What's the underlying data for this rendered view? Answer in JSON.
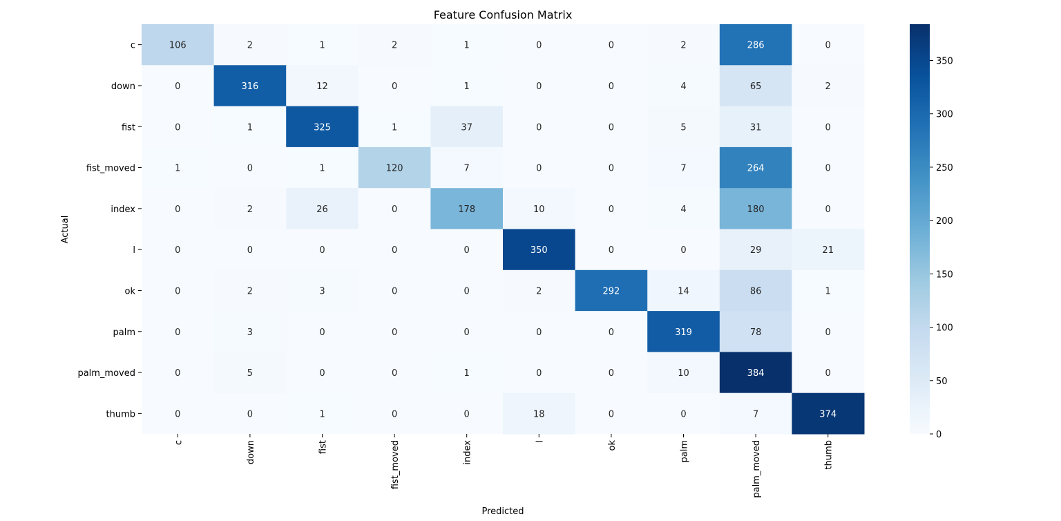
{
  "chart_data": {
    "type": "heatmap",
    "title": "Feature Confusion Matrix",
    "xlabel": "Predicted",
    "ylabel": "Actual",
    "row_labels": [
      "c",
      "down",
      "fist",
      "fist_moved",
      "index",
      "l",
      "ok",
      "palm",
      "palm_moved",
      "thumb"
    ],
    "col_labels": [
      "c",
      "down",
      "fist",
      "fist_moved",
      "index",
      "l",
      "ok",
      "palm",
      "palm_moved",
      "thumb"
    ],
    "values": [
      [
        106,
        2,
        1,
        2,
        1,
        0,
        0,
        2,
        286,
        0
      ],
      [
        0,
        316,
        12,
        0,
        1,
        0,
        0,
        4,
        65,
        2
      ],
      [
        0,
        1,
        325,
        1,
        37,
        0,
        0,
        5,
        31,
        0
      ],
      [
        1,
        0,
        1,
        120,
        7,
        0,
        0,
        7,
        264,
        0
      ],
      [
        0,
        2,
        26,
        0,
        178,
        10,
        0,
        4,
        180,
        0
      ],
      [
        0,
        0,
        0,
        0,
        0,
        350,
        0,
        0,
        29,
        21
      ],
      [
        0,
        2,
        3,
        0,
        0,
        2,
        292,
        14,
        86,
        1
      ],
      [
        0,
        3,
        0,
        0,
        0,
        0,
        0,
        319,
        78,
        0
      ],
      [
        0,
        5,
        0,
        0,
        1,
        0,
        0,
        10,
        384,
        0
      ],
      [
        0,
        0,
        1,
        0,
        0,
        18,
        0,
        0,
        7,
        374
      ]
    ],
    "colorscale": "Blues",
    "value_range": [
      0,
      384
    ],
    "colorbar_ticks": [
      0,
      50,
      100,
      150,
      200,
      250,
      300,
      350
    ],
    "colors": {
      "low": "#f7fbff",
      "high": "#08306b"
    }
  }
}
